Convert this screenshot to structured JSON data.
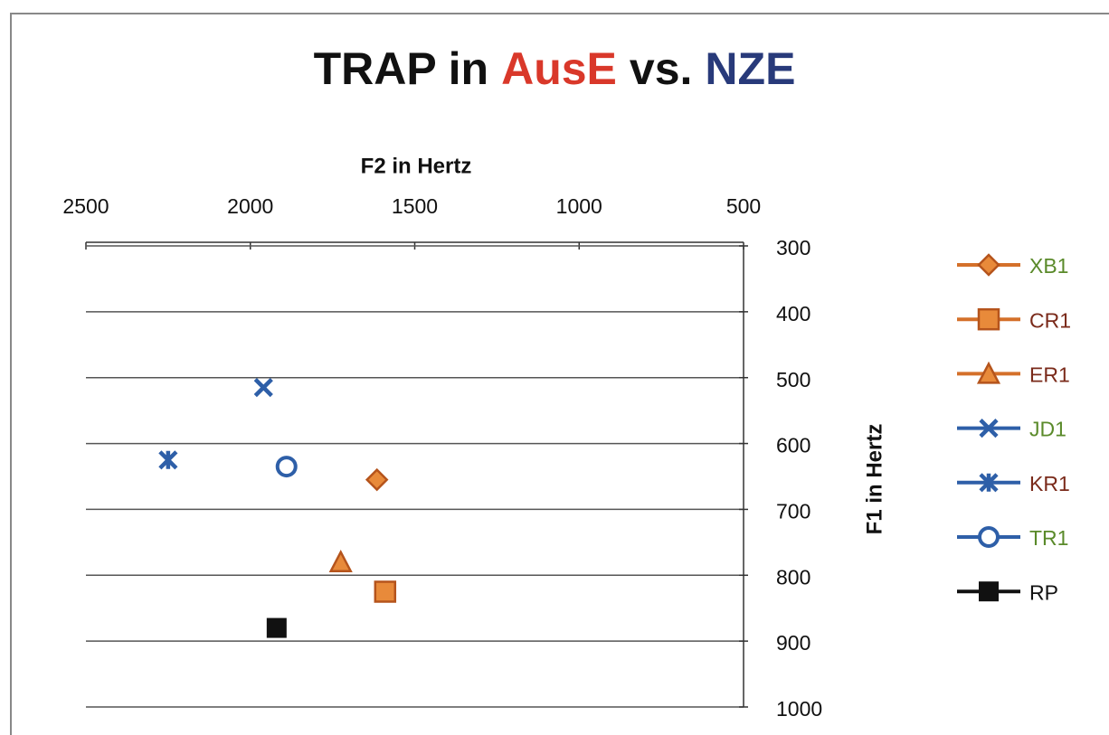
{
  "chart_data": {
    "type": "scatter",
    "title_parts": [
      "TRAP in",
      "AusE",
      "vs.",
      "NZE"
    ],
    "title_colors": [
      "#111111",
      "#d9382a",
      "#111111",
      "#283a7a"
    ],
    "xlabel": "F2 in Hertz",
    "ylabel": "F1 in Hertz",
    "xlim": [
      2500,
      500
    ],
    "xticks": [
      2500,
      2000,
      1500,
      1000,
      500
    ],
    "ylim": [
      300,
      1000
    ],
    "yticks": [
      300,
      400,
      500,
      600,
      700,
      800,
      900,
      1000
    ],
    "x_reversed": true,
    "y_reversed": true,
    "grid": true,
    "legend": "right",
    "series": [
      {
        "name": "XB1",
        "color": "#d4702a",
        "marker": "diamond",
        "label_color": "#5a8a2a",
        "x": [
          1615
        ],
        "values": [
          655
        ]
      },
      {
        "name": "CR1",
        "color": "#d4702a",
        "marker": "square",
        "label_color": "#7a2a1a",
        "x": [
          1590
        ],
        "values": [
          825
        ]
      },
      {
        "name": "ER1",
        "color": "#d4702a",
        "marker": "triangle",
        "label_color": "#7a2a1a",
        "x": [
          1725
        ],
        "values": [
          780
        ]
      },
      {
        "name": "JD1",
        "color": "#2e5fa8",
        "marker": "x",
        "label_color": "#5a8a2a",
        "x": [
          1960
        ],
        "values": [
          515
        ]
      },
      {
        "name": "KR1",
        "color": "#2e5fa8",
        "marker": "star",
        "label_color": "#7a2a1a",
        "x": [
          2250
        ],
        "values": [
          625
        ]
      },
      {
        "name": "TR1",
        "color": "#2e5fa8",
        "marker": "circle",
        "label_color": "#5a8a2a",
        "x": [
          1890
        ],
        "values": [
          635
        ]
      },
      {
        "name": "RP",
        "color": "#111111",
        "marker": "filledsquare",
        "label_color": "#111111",
        "x": [
          1920
        ],
        "values": [
          880
        ]
      }
    ]
  }
}
